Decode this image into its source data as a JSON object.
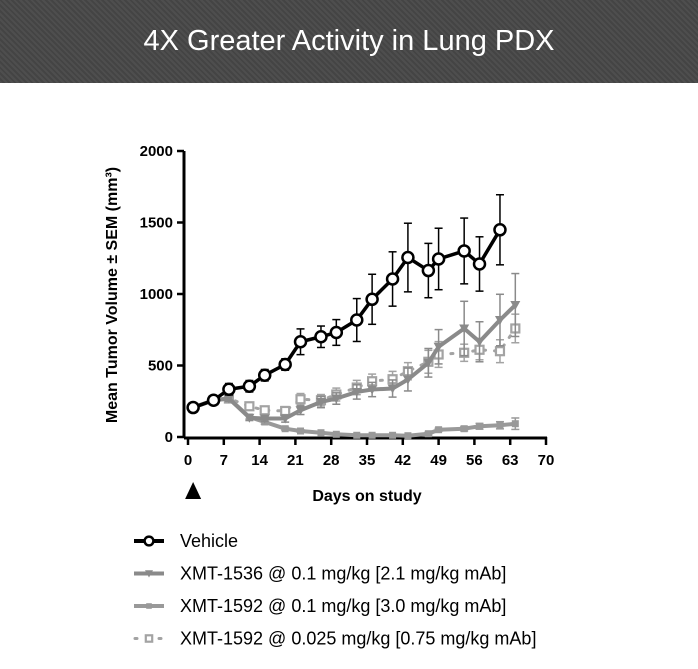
{
  "title": "4X Greater Activity in Lung PDX",
  "chart_data": {
    "type": "line",
    "title": "",
    "xlabel": "Days on study",
    "ylabel": "Mean Tumor Volume ± SEM (mm³)",
    "xlim": [
      0,
      70
    ],
    "ylim": [
      0,
      2000
    ],
    "xticks": [
      0,
      7,
      14,
      21,
      28,
      35,
      42,
      49,
      56,
      63,
      70
    ],
    "yticks": [
      0,
      500,
      1000,
      1500,
      2000
    ],
    "grid": false,
    "legend_position": "bottom",
    "dosing_marker_day": 1,
    "series": [
      {
        "name": "Vehicle",
        "color": "#000000",
        "marker": "open-circle",
        "x": [
          1,
          5,
          8,
          12,
          15,
          19,
          22,
          26,
          29,
          33,
          36,
          40,
          43,
          47,
          49,
          54,
          57,
          61
        ],
        "y": [
          206,
          257,
          334,
          355,
          432,
          507,
          666,
          701,
          731,
          818,
          963,
          1105,
          1255,
          1164,
          1245,
          1301,
          1210,
          1449
        ],
        "err": [
          10,
          20,
          40,
          40,
          40,
          40,
          90,
          75,
          90,
          150,
          175,
          190,
          240,
          190,
          215,
          230,
          190,
          245
        ]
      },
      {
        "name": "XMT-1536 @ 0.1 mg/kg [2.1 mg/kg mAb]",
        "color": "#8a8a8a",
        "marker": "down-triangle",
        "x": [
          1,
          5,
          8,
          12,
          15,
          19,
          22,
          26,
          29,
          33,
          36,
          40,
          43,
          47,
          49,
          54,
          57,
          61,
          64
        ],
        "y": [
          206,
          257,
          269,
          135,
          129,
          129,
          187,
          245,
          269,
          315,
          332,
          339,
          402,
          519,
          631,
          759,
          666,
          818,
          923
        ],
        "err": [
          10,
          15,
          20,
          20,
          20,
          25,
          30,
          40,
          40,
          50,
          50,
          60,
          80,
          100,
          120,
          190,
          140,
          180,
          220
        ]
      },
      {
        "name": "XMT-1592 @ 0.1 mg/kg [3.0 mg/kg mAb]",
        "color": "#999999",
        "marker": "square",
        "x": [
          1,
          5,
          8,
          12,
          15,
          19,
          22,
          26,
          29,
          33,
          36,
          40,
          43,
          47,
          49,
          54,
          57,
          61,
          64
        ],
        "y": [
          206,
          257,
          269,
          140,
          105,
          58,
          42,
          30,
          19,
          12,
          12,
          12,
          9,
          23,
          51,
          58,
          75,
          82,
          93
        ],
        "err": [
          10,
          15,
          20,
          15,
          15,
          10,
          8,
          5,
          5,
          5,
          5,
          5,
          5,
          10,
          10,
          15,
          20,
          25,
          40
        ]
      },
      {
        "name": "XMT-1592 @ 0.025 mg/kg [0.75 mg/kg mAb]",
        "color": "#a3a3a3",
        "marker": "open-square-dotted",
        "x": [
          1,
          5,
          8,
          12,
          15,
          19,
          22,
          26,
          29,
          33,
          36,
          40,
          43,
          47,
          49,
          54,
          57,
          61,
          64
        ],
        "y": [
          206,
          257,
          269,
          215,
          187,
          182,
          264,
          257,
          297,
          346,
          390,
          404,
          460,
          526,
          577,
          589,
          610,
          600,
          759
        ],
        "err": [
          10,
          15,
          20,
          25,
          25,
          30,
          40,
          40,
          45,
          50,
          50,
          55,
          60,
          80,
          90,
          60,
          70,
          80,
          100
        ]
      }
    ]
  }
}
